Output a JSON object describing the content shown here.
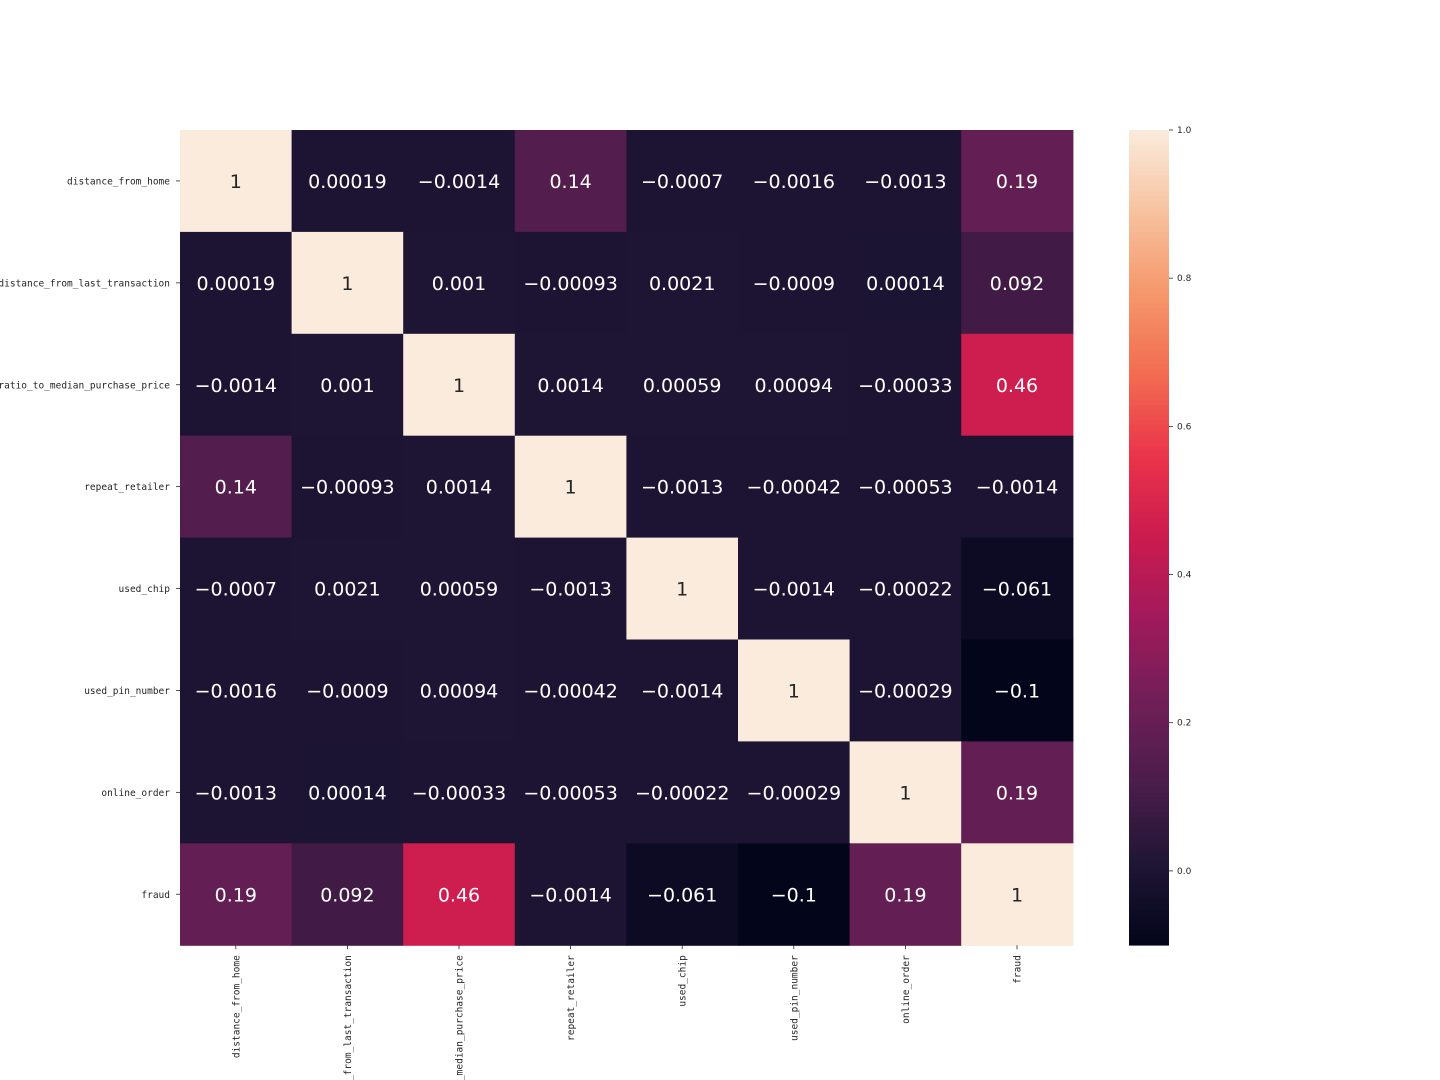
{
  "chart_data": {
    "type": "heatmap",
    "title": "",
    "xlabel": "",
    "ylabel": "",
    "labels": [
      "distance_from_home",
      "distance_from_last_transaction",
      "ratio_to_median_purchase_price",
      "repeat_retailer",
      "used_chip",
      "used_pin_number",
      "online_order",
      "fraud"
    ],
    "matrix": [
      [
        1,
        0.00019,
        -0.0014,
        0.14,
        -0.0007,
        -0.0016,
        -0.0013,
        0.19
      ],
      [
        0.00019,
        1,
        0.001,
        -0.00093,
        0.0021,
        -0.0009,
        0.00014,
        0.092
      ],
      [
        -0.0014,
        0.001,
        1,
        0.0014,
        0.00059,
        0.00094,
        -0.00033,
        0.46
      ],
      [
        0.14,
        -0.00093,
        0.0014,
        1,
        -0.0013,
        -0.00042,
        -0.00053,
        -0.0014
      ],
      [
        -0.0007,
        0.0021,
        0.00059,
        -0.0013,
        1,
        -0.0014,
        -0.00022,
        -0.061
      ],
      [
        -0.0016,
        -0.0009,
        0.00094,
        -0.00042,
        -0.0014,
        1,
        -0.00029,
        -0.1
      ],
      [
        -0.0013,
        0.00014,
        -0.00033,
        -0.00053,
        -0.00022,
        -0.00029,
        1,
        0.19
      ],
      [
        0.19,
        0.092,
        0.46,
        -0.0014,
        -0.061,
        -0.1,
        0.19,
        1
      ]
    ],
    "annotations": [
      [
        "1",
        "0.00019",
        "-0.0014",
        "0.14",
        "-0.0007",
        "-0.0016",
        "-0.0013",
        "0.19"
      ],
      [
        "0.00019",
        "1",
        "0.001",
        "-0.00093",
        "0.0021",
        "-0.0009",
        "0.00014",
        "0.092"
      ],
      [
        "-0.0014",
        "0.001",
        "1",
        "0.0014",
        "0.00059",
        "0.00094",
        "-0.00033",
        "0.46"
      ],
      [
        "0.14",
        "-0.00093",
        "0.0014",
        "1",
        "-0.0013",
        "-0.00042",
        "-0.00053",
        "-0.0014"
      ],
      [
        "-0.0007",
        "0.0021",
        "0.00059",
        "-0.0013",
        "1",
        "-0.0014",
        "-0.00022",
        "-0.061"
      ],
      [
        "-0.0016",
        "-0.0009",
        "0.00094",
        "-0.00042",
        "-0.0014",
        "1",
        "-0.00029",
        "-0.1"
      ],
      [
        "-0.0013",
        "0.00014",
        "-0.00033",
        "-0.00053",
        "-0.00022",
        "-0.00029",
        "1",
        "0.19"
      ],
      [
        "0.19",
        "0.092",
        "0.46",
        "-0.0014",
        "-0.061",
        "-0.1",
        "0.19",
        "1"
      ]
    ],
    "colorbar": {
      "min": -0.1,
      "max": 1.0,
      "ticks": [
        0.0,
        0.2,
        0.4,
        0.6,
        0.8,
        1.0
      ],
      "tick_labels": [
        "0.0",
        "0.2",
        "0.4",
        "0.6",
        "0.8",
        "1.0"
      ],
      "colormap": "rocket",
      "colormap_stops": [
        {
          "v": 0.0,
          "color": "#03051a"
        },
        {
          "v": 0.1,
          "color": "#1f1635"
        },
        {
          "v": 0.2,
          "color": "#4c1d4b"
        },
        {
          "v": 0.3,
          "color": "#701f57"
        },
        {
          "v": 0.4,
          "color": "#a11a5b"
        },
        {
          "v": 0.5,
          "color": "#cb1b4f"
        },
        {
          "v": 0.6,
          "color": "#ea344a"
        },
        {
          "v": 0.7,
          "color": "#f26c51"
        },
        {
          "v": 0.8,
          "color": "#f5976b"
        },
        {
          "v": 0.9,
          "color": "#f7c29f"
        },
        {
          "v": 1.0,
          "color": "#faebdd"
        }
      ]
    }
  }
}
